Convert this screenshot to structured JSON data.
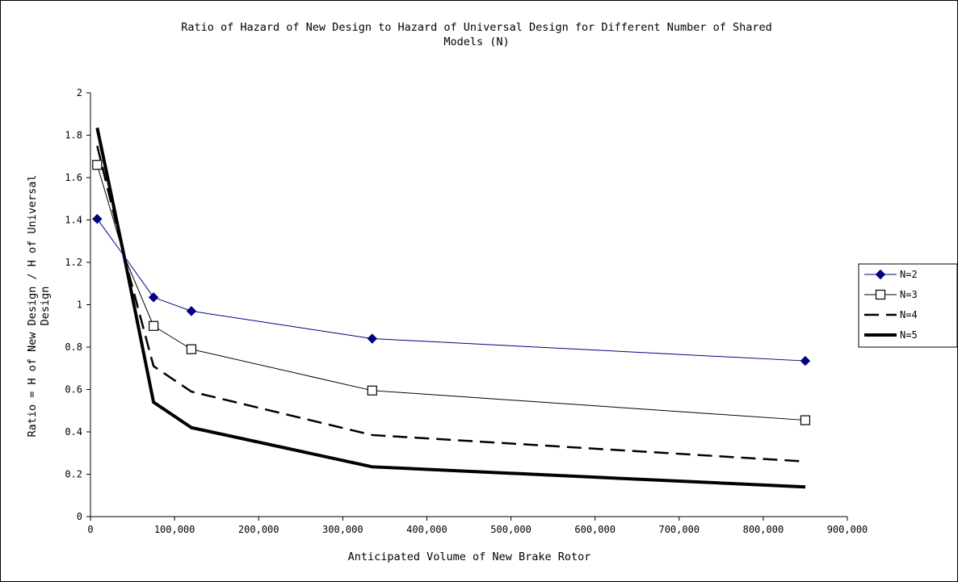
{
  "chart_data": {
    "type": "line",
    "title_lines": [
      "Ratio of Hazard of New Design to Hazard of Universal Design for Different Number of Shared",
      "Models (N)"
    ],
    "xlabel": "Anticipated Volume of New Brake Rotor",
    "ylabel_lines": [
      "Ratio = H of New Design / H of Universal",
      "Design"
    ],
    "xlim": [
      0,
      900000
    ],
    "ylim": [
      0,
      2
    ],
    "x_ticks": [
      0,
      100000,
      200000,
      300000,
      400000,
      500000,
      600000,
      700000,
      800000,
      900000
    ],
    "x_tick_labels": [
      "0",
      "100,000",
      "200,000",
      "300,000",
      "400,000",
      "500,000",
      "600,000",
      "700,000",
      "800,000",
      "900,000"
    ],
    "y_ticks": [
      0,
      0.2,
      0.4,
      0.6,
      0.8,
      1,
      1.2,
      1.4,
      1.6,
      1.8,
      2
    ],
    "y_tick_labels": [
      "0",
      "0.2",
      "0.4",
      "0.6",
      "0.8",
      "1",
      "1.2",
      "1.4",
      "1.6",
      "1.8",
      "2"
    ],
    "grid": false,
    "legend_position": "right",
    "x": [
      8000,
      40000,
      75000,
      120000,
      335000,
      850000
    ],
    "series": [
      {
        "name": "N=2",
        "values": [
          1.405,
          1.23,
          1.035,
          0.97,
          0.84,
          0.735
        ],
        "color": "#000080",
        "marker": "diamond",
        "line_style": "solid"
      },
      {
        "name": "N=3",
        "values": [
          1.66,
          1.23,
          0.9,
          0.79,
          0.595,
          0.455
        ],
        "color": "#000000",
        "marker": "square-open",
        "line_style": "solid"
      },
      {
        "name": "N=4",
        "values": [
          1.75,
          1.23,
          0.71,
          0.59,
          0.385,
          0.26
        ],
        "color": "#000000",
        "marker": "none",
        "line_style": "dashed"
      },
      {
        "name": "N=5",
        "values": [
          1.835,
          1.23,
          0.54,
          0.42,
          0.235,
          0.14
        ],
        "color": "#000000",
        "marker": "none",
        "line_style": "thick"
      }
    ]
  }
}
